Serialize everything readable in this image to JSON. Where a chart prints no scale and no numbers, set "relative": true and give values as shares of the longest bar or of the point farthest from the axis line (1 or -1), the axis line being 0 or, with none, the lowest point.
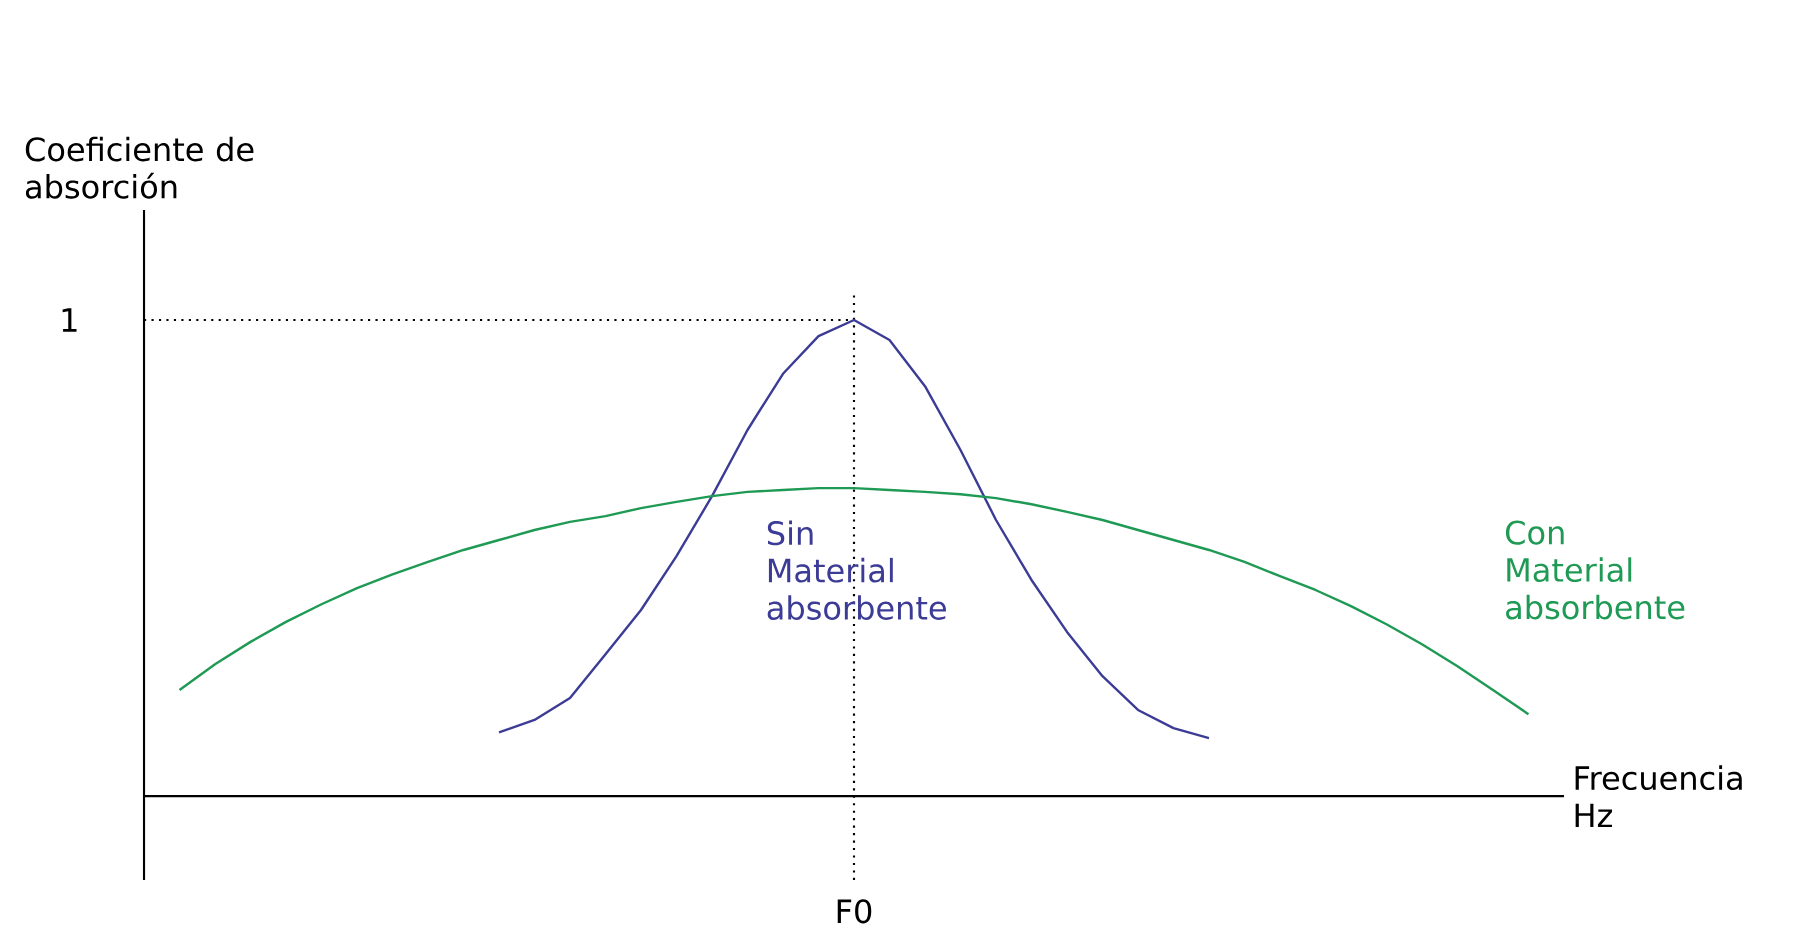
{
  "chart_data": {
    "type": "line",
    "relative": true,
    "xlabel": "Frecuencia Hz",
    "ylabel": "Coeficiente de absorción",
    "categories": [
      null,
      null,
      null,
      null,
      null,
      null,
      null,
      null,
      null,
      null,
      null,
      null,
      null,
      null,
      null,
      null,
      null,
      null,
      null,
      null,
      null,
      null,
      null,
      null,
      null,
      null,
      null,
      null,
      null,
      null,
      null,
      null,
      null,
      null,
      null,
      null,
      null,
      null,
      null,
      null,
      null
    ],
    "annotations": [
      "F0"
    ],
    "ref_lines": [
      {
        "axis": "y",
        "value": 1,
        "label": "1",
        "line_style": "dotted"
      }
    ],
    "series": [
      {
        "name": "Sin Material absorbente",
        "color": "#3c3c96",
        "values": [
          null,
          null,
          null,
          null,
          null,
          null,
          null,
          null,
          null,
          null,
          0.134,
          0.16,
          0.206,
          0.298,
          0.391,
          0.504,
          0.63,
          0.769,
          0.887,
          0.966,
          1,
          0.958,
          0.861,
          0.727,
          0.58,
          0.454,
          0.345,
          0.252,
          0.181,
          0.143,
          0.122,
          null,
          null,
          null,
          null,
          null,
          null,
          null,
          null,
          null,
          null
        ]
      },
      {
        "name": "Con Material absorbente",
        "color": "#1f9a55",
        "values": [
          null,
          0.223,
          0.277,
          0.324,
          0.366,
          0.403,
          0.437,
          0.466,
          0.492,
          0.517,
          0.538,
          0.559,
          0.576,
          0.588,
          0.605,
          0.618,
          0.63,
          0.639,
          0.643,
          0.647,
          0.647,
          0.643,
          0.639,
          0.634,
          0.626,
          0.613,
          0.597,
          0.58,
          0.559,
          0.538,
          0.517,
          0.492,
          0.462,
          0.433,
          0.399,
          0.361,
          0.319,
          0.273,
          0.223,
          0.172,
          null
        ]
      }
    ]
  }
}
